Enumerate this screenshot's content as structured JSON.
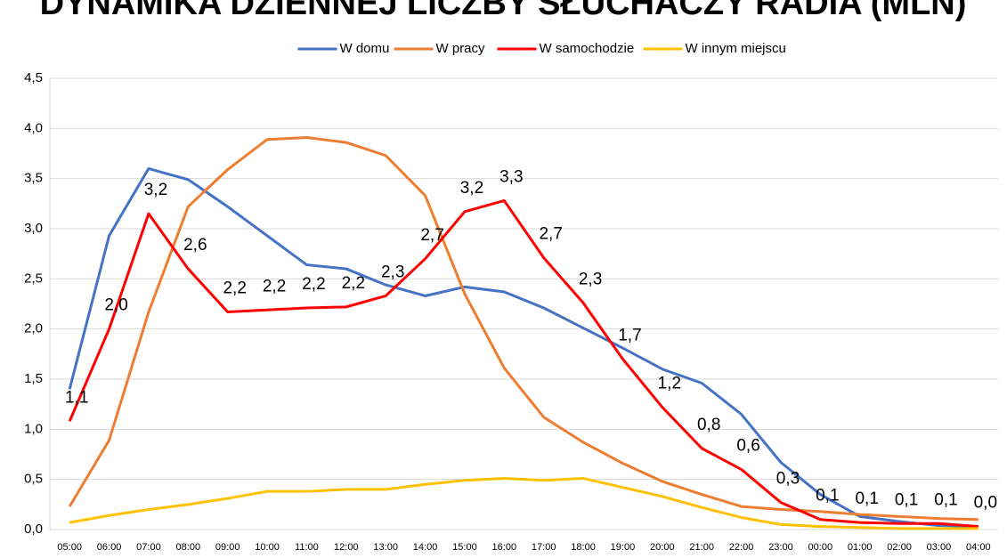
{
  "chart_data": {
    "type": "line",
    "title": "DYNAMIKA DZIENNEJ LICZBY SŁUCHACZY RADIA (MLN)",
    "categories": [
      "05:00",
      "06:00",
      "07:00",
      "08:00",
      "09:00",
      "10:00",
      "11:00",
      "12:00",
      "13:00",
      "14:00",
      "15:00",
      "16:00",
      "17:00",
      "18:00",
      "19:00",
      "20:00",
      "21:00",
      "22:00",
      "23:00",
      "00:00",
      "01:00",
      "02:00",
      "03:00",
      "04:00"
    ],
    "series": [
      {
        "name": "W domu",
        "color": "#4472c4",
        "values": [
          1.4,
          2.93,
          3.6,
          3.49,
          3.22,
          2.93,
          2.64,
          2.6,
          2.44,
          2.33,
          2.42,
          2.37,
          2.21,
          2.01,
          1.81,
          1.6,
          1.46,
          1.15,
          0.67,
          0.35,
          0.13,
          0.08,
          0.04,
          0.03
        ]
      },
      {
        "name": "W pracy",
        "color": "#ed7d31",
        "values": [
          0.23,
          0.89,
          2.17,
          3.22,
          3.59,
          3.89,
          3.91,
          3.86,
          3.73,
          3.33,
          2.35,
          1.61,
          1.12,
          0.87,
          0.66,
          0.48,
          0.35,
          0.23,
          0.2,
          0.18,
          0.15,
          0.13,
          0.11,
          0.1
        ]
      },
      {
        "name": "W samochodzie",
        "color": "#ff0000",
        "values": [
          1.08,
          2.0,
          3.15,
          2.6,
          2.17,
          2.19,
          2.21,
          2.22,
          2.33,
          2.7,
          3.17,
          3.28,
          2.71,
          2.26,
          1.7,
          1.22,
          0.81,
          0.6,
          0.27,
          0.1,
          0.07,
          0.06,
          0.06,
          0.03
        ],
        "value_labels": [
          "1,1",
          "2,0",
          "3,2",
          "2,6",
          "2,2",
          "2,2",
          "2,2",
          "2,2",
          "2,3",
          "2,7",
          "3,2",
          "3,3",
          "2,7",
          "2,3",
          "1,7",
          "1,2",
          "0,8",
          "0,6",
          "0,3",
          "0,1",
          "0,1",
          "0,1",
          "0,1",
          "0,0"
        ]
      },
      {
        "name": "W innym miejscu",
        "color": "#ffc000",
        "values": [
          0.07,
          0.14,
          0.2,
          0.25,
          0.31,
          0.38,
          0.38,
          0.4,
          0.4,
          0.45,
          0.49,
          0.51,
          0.49,
          0.51,
          0.42,
          0.33,
          0.22,
          0.12,
          0.05,
          0.03,
          0.02,
          0.01,
          0.01,
          0.01
        ]
      }
    ],
    "ylim": [
      0,
      4.5
    ],
    "yticks": [
      {
        "value": 0,
        "label": "0,0"
      },
      {
        "value": 0.5,
        "label": "0,5"
      },
      {
        "value": 1,
        "label": "1,0"
      },
      {
        "value": 1.5,
        "label": "1,5"
      },
      {
        "value": 2,
        "label": "2,0"
      },
      {
        "value": 2.5,
        "label": "2,5"
      },
      {
        "value": 3,
        "label": "3,0"
      },
      {
        "value": 3.5,
        "label": "3,5"
      },
      {
        "value": 4,
        "label": "4,0"
      },
      {
        "value": 4.5,
        "label": "4,5"
      }
    ],
    "grid": true,
    "legend": "top"
  }
}
